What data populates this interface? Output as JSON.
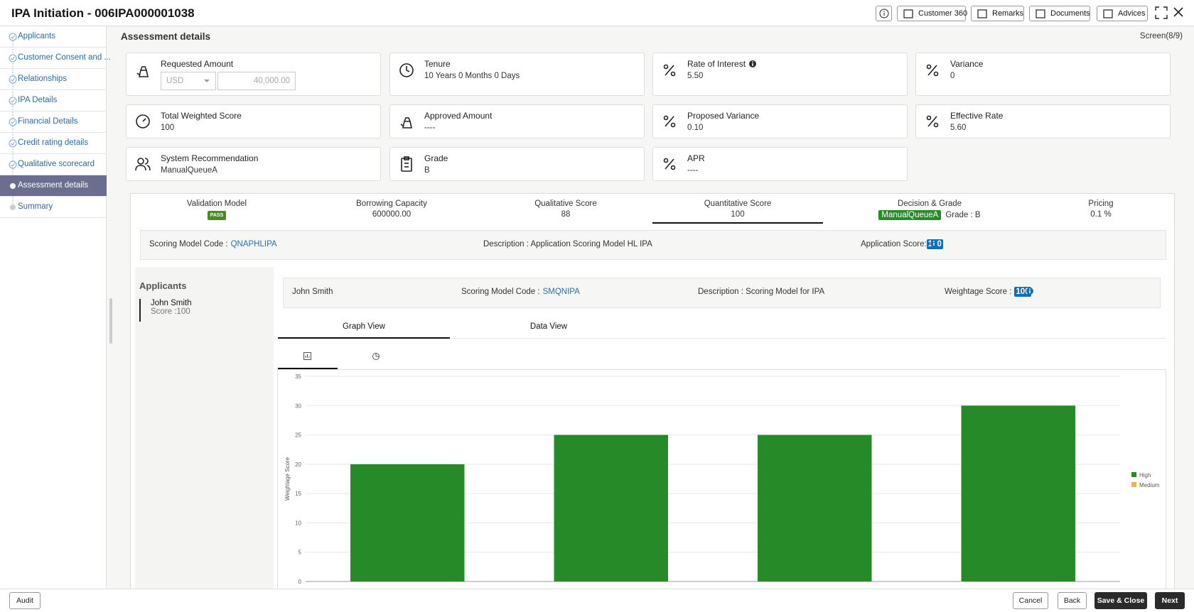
{
  "header": {
    "title": "IPA Initiation - 006IPA000001038",
    "buttons": [
      "Customer 360",
      "Remarks",
      "Documents",
      "Advices"
    ]
  },
  "sidebar": {
    "steps": [
      "Applicants",
      "Customer Consent and ...",
      "Relationships",
      "IPA Details",
      "Financial Details",
      "Credit rating details",
      "Qualitative scorecard",
      "Assessment details",
      "Summary"
    ],
    "active": 7
  },
  "section": {
    "title": "Assessment details",
    "screen": "Screen(8/9)"
  },
  "cards": [
    {
      "label": "Requested Amount",
      "currency": "USD",
      "amount": "40,000.00"
    },
    {
      "label": "Tenure",
      "value": "10 Years 0 Months 0 Days"
    },
    {
      "label": "Rate of Interest",
      "value": "5.50"
    },
    {
      "label": "Variance",
      "value": "0"
    },
    {
      "label": "Total Weighted Score",
      "value": "100"
    },
    {
      "label": "Approved Amount",
      "value": "----"
    },
    {
      "label": "Proposed Variance",
      "value": "0.10"
    },
    {
      "label": "Effective Rate",
      "value": "5.60"
    },
    {
      "label": "System Recommendation",
      "value": "ManualQueueA"
    },
    {
      "label": "Grade",
      "value": "B"
    },
    {
      "label": "APR",
      "value": "----"
    }
  ],
  "scores": [
    {
      "label": "Validation Model",
      "value": "PASS"
    },
    {
      "label": "Borrowing Capacity",
      "value": "600000.00"
    },
    {
      "label": "Qualitative Score",
      "value": "88"
    },
    {
      "label": "Quantitative Score",
      "value": "100"
    },
    {
      "label": "Decision & Grade",
      "value": "ManualQueueA",
      "grade": "Grade : B"
    },
    {
      "label": "Pricing",
      "value": "0.1 %"
    }
  ],
  "scoring_model": {
    "code_label": "Scoring Model Code :",
    "code": "QNAPHLIPA",
    "description": "Description : Application Scoring Model HL IPA",
    "score_label": "Application Score:",
    "score": "100"
  },
  "applicants": {
    "title": "Applicants",
    "items": [
      {
        "name": "John Smith",
        "score": "Score :100"
      }
    ]
  },
  "applicant_detail": {
    "name": "John Smith",
    "code_label": "Scoring Model Code :",
    "code": "SMQNIPA",
    "description": "Description : Scoring Model for IPA",
    "weightage_label": "Weightage Score :",
    "weightage": "100"
  },
  "tabs": [
    "Graph View",
    "Data View"
  ],
  "footer": {
    "left": "Audit",
    "buttons": [
      "Cancel",
      "Back",
      "Save & Close",
      "Next"
    ]
  },
  "chart_data": {
    "type": "bar",
    "y_label": "Weightage Score",
    "categories": [
      null,
      null,
      null,
      null
    ],
    "series": [
      {
        "name": "High",
        "color": "#278a28",
        "values": [
          20,
          25,
          25,
          30
        ]
      },
      {
        "name": "Medium",
        "color": "#f0b05e",
        "values": [
          null,
          null,
          null,
          null
        ]
      }
    ],
    "ylim": [
      0,
      35
    ],
    "yticks": [
      0,
      5,
      10,
      15,
      20,
      25,
      30,
      35
    ],
    "grid": true
  }
}
